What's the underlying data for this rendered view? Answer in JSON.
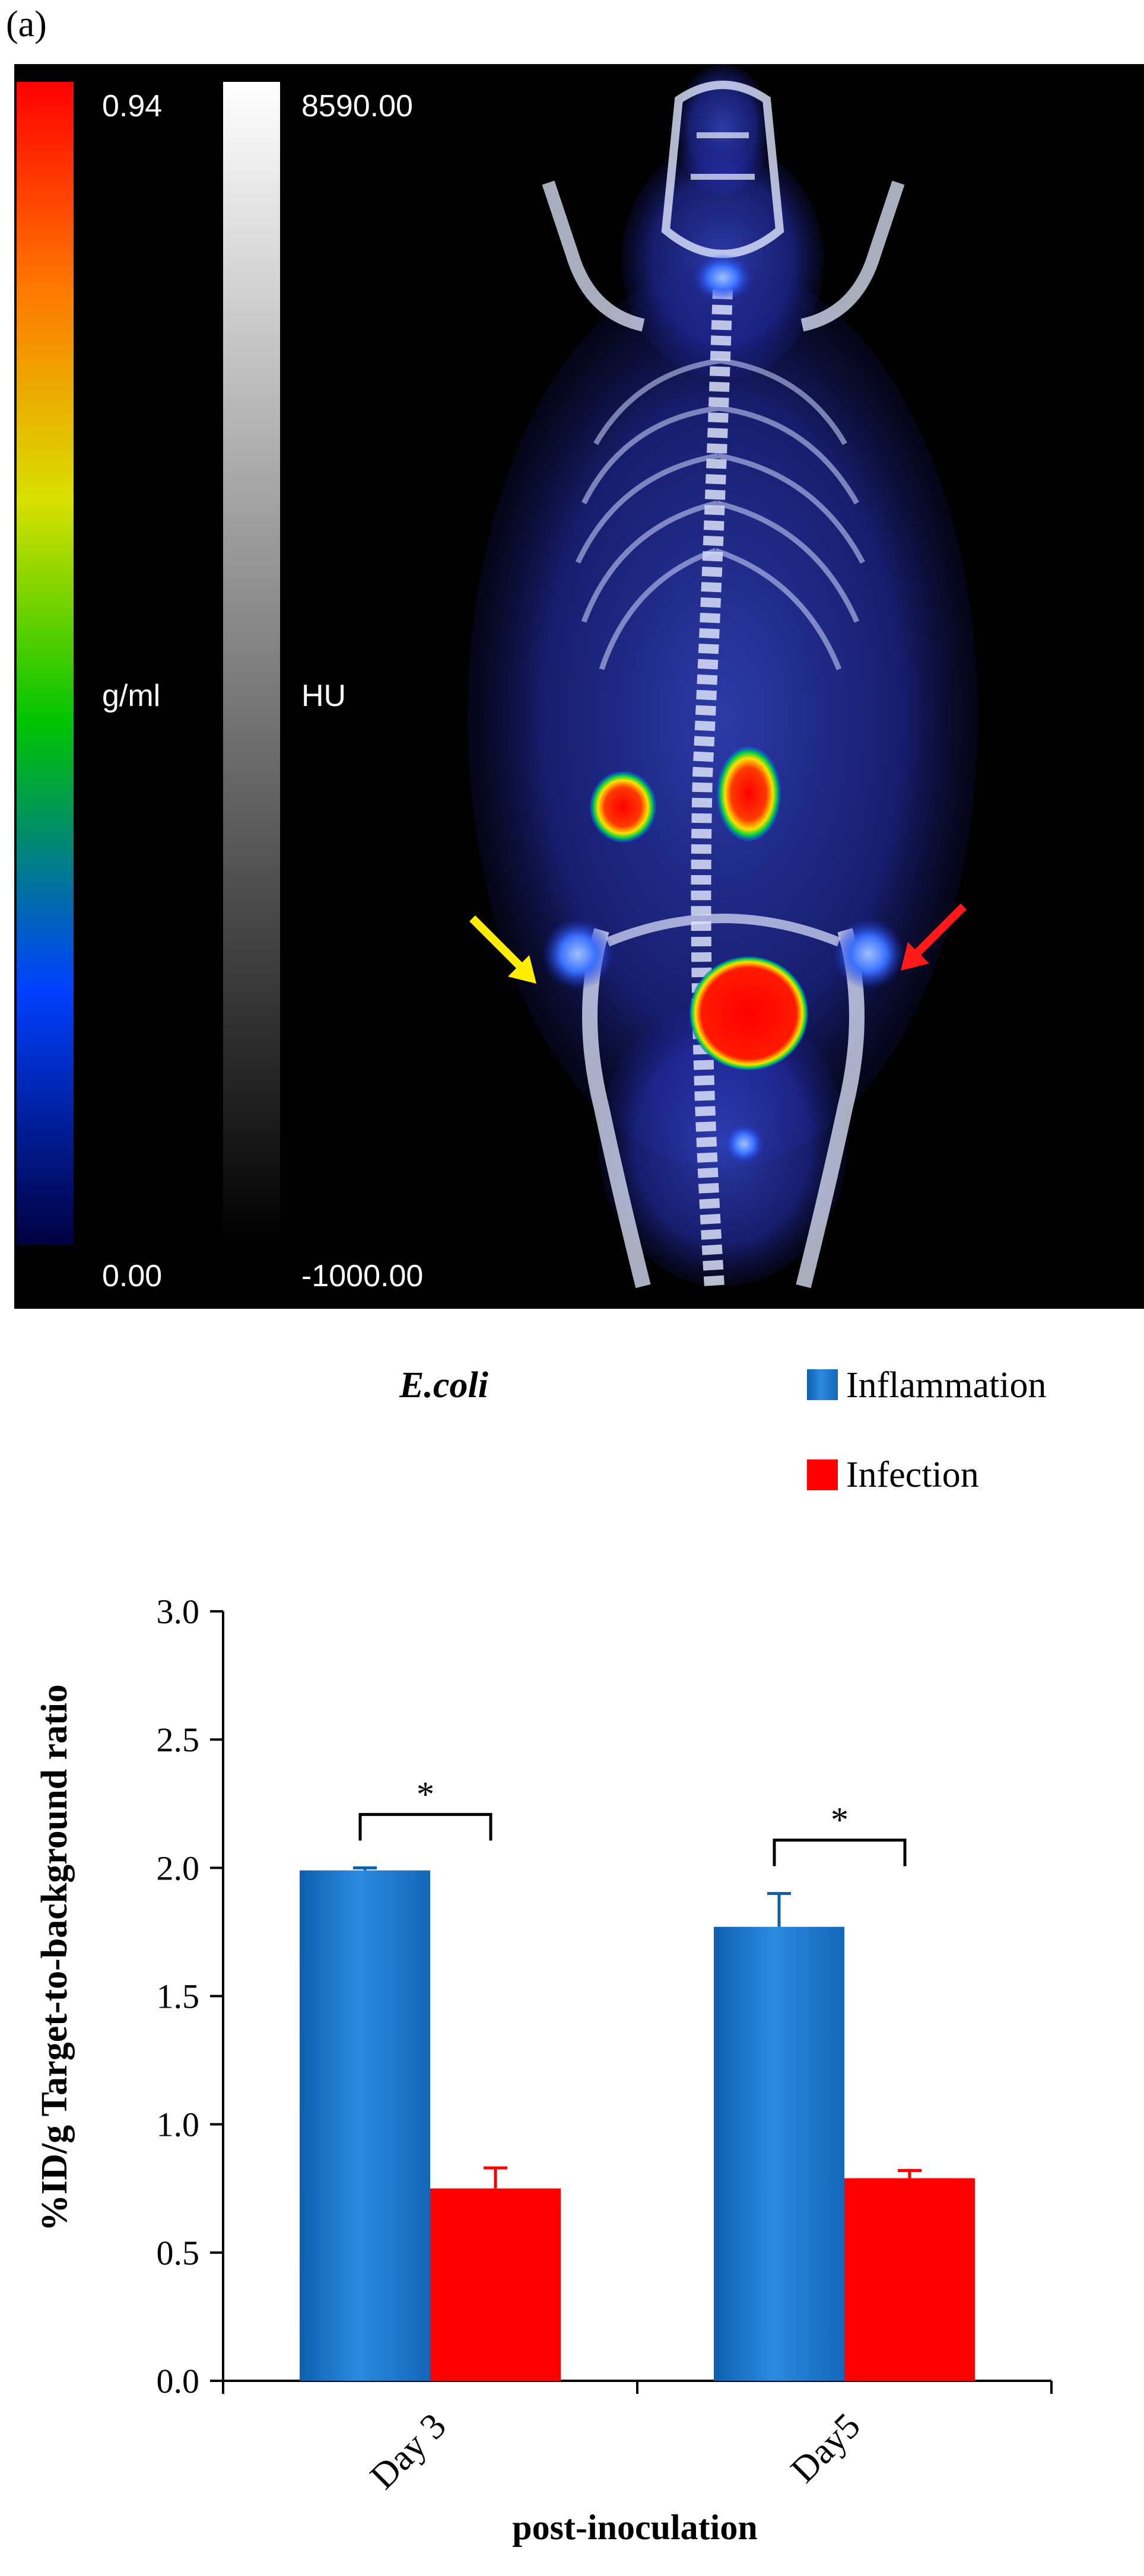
{
  "panel_label": "(a)",
  "imaging": {
    "pet_scale": {
      "max": "0.94",
      "unit": "g/ml",
      "min": "0.00",
      "colors": [
        "#ff0000",
        "#ff8a00",
        "#ffff00",
        "#00d000",
        "#0050ff",
        "#000060"
      ]
    },
    "ct_scale": {
      "max": "8590.00",
      "unit": "HU",
      "min": "-1000.00"
    },
    "arrows": {
      "yellow": "#ffee00",
      "red": "#ff1a1a"
    }
  },
  "chart_data": {
    "type": "bar",
    "organism_label": "E.coli",
    "categories": [
      "Day 3",
      "Day5"
    ],
    "series": [
      {
        "name": "Inflammation",
        "values": [
          1.99,
          1.77
        ],
        "errors": [
          0.01,
          0.13
        ],
        "color": "#1f78c8"
      },
      {
        "name": "Infection",
        "values": [
          0.75,
          0.79
        ],
        "errors": [
          0.08,
          0.03
        ],
        "color": "#ff0000"
      }
    ],
    "ylabel": "%ID/g Target-to-background ratio",
    "xlabel": "post-inoculation",
    "ylim": [
      0,
      3.0
    ],
    "yticks": [
      "0.0",
      "0.5",
      "1.0",
      "1.5",
      "2.0",
      "2.5",
      "3.0"
    ],
    "significance": [
      "*",
      "*"
    ],
    "legend_position": "top-right",
    "grid": false
  }
}
